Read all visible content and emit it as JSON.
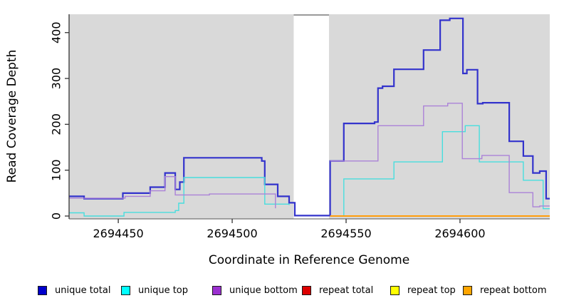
{
  "chart_data": {
    "type": "line",
    "subtype": "step-coverage",
    "title": "",
    "xlabel": "Coordinate in Reference Genome",
    "ylabel": "Read Coverage Depth",
    "x_ticks": [
      2694450,
      2694500,
      2694550,
      2694600
    ],
    "y_ticks": [
      0,
      100,
      200,
      300,
      400
    ],
    "xlim": [
      2694428.4,
      2694639.4
    ],
    "ylim": [
      -6.2,
      440
    ],
    "grid": false,
    "panel_bg": "#d9d9d9",
    "no_data_gap": {
      "from": 2694527,
      "to": 2694542.5,
      "fill": "#ffffff",
      "top_strip_color": "#9a9a9a"
    },
    "legend_position": "bottom",
    "series": [
      {
        "name": "unique total",
        "color": "#3333cc",
        "legend_color": "#0000cc",
        "line_width": 2.2,
        "points": [
          [
            2694428.4,
            43
          ],
          [
            2694435,
            38
          ],
          [
            2694452,
            50
          ],
          [
            2694464,
            63
          ],
          [
            2694470.5,
            94
          ],
          [
            2694475,
            58
          ],
          [
            2694477,
            74
          ],
          [
            2694478.8,
            127
          ],
          [
            2694513,
            120
          ],
          [
            2694514.3,
            69
          ],
          [
            2694520,
            43
          ],
          [
            2694525,
            29
          ],
          [
            2694527.5,
            1
          ],
          [
            2694543,
            120
          ],
          [
            2694549,
            202
          ],
          [
            2694562.5,
            205
          ],
          [
            2694564,
            279
          ],
          [
            2694566,
            283
          ],
          [
            2694571,
            320
          ],
          [
            2694584,
            362
          ],
          [
            2694591.3,
            427
          ],
          [
            2694595.5,
            431
          ],
          [
            2694601.3,
            311
          ],
          [
            2694603,
            319
          ],
          [
            2694607.7,
            245
          ],
          [
            2694610,
            247
          ],
          [
            2694621.6,
            163
          ],
          [
            2694627.8,
            131
          ],
          [
            2694632,
            94
          ],
          [
            2694635,
            98
          ],
          [
            2694637.8,
            38
          ]
        ]
      },
      {
        "name": "unique top",
        "color": "#48dede",
        "legend_color": "#00ffff",
        "line_width": 1.4,
        "points": [
          [
            2694428.4,
            7
          ],
          [
            2694435,
            0
          ],
          [
            2694452.5,
            8
          ],
          [
            2694475,
            12
          ],
          [
            2694476.5,
            28
          ],
          [
            2694478.8,
            84
          ],
          [
            2694514.3,
            26
          ],
          [
            2694525,
            24
          ],
          [
            2694527.5,
            null
          ],
          [
            2694543,
            0
          ],
          [
            2694549,
            81
          ],
          [
            2694571,
            118
          ],
          [
            2694592.3,
            184
          ],
          [
            2694602.3,
            197
          ],
          [
            2694608.5,
            118
          ],
          [
            2694627.8,
            78
          ],
          [
            2694636.5,
            16
          ]
        ]
      },
      {
        "name": "unique bottom",
        "color": "#ab82d8",
        "legend_color": "#9b30d0",
        "line_width": 1.4,
        "points": [
          [
            2694428.4,
            39
          ],
          [
            2694453,
            43
          ],
          [
            2694464,
            55
          ],
          [
            2694470.5,
            86
          ],
          [
            2694475,
            46
          ],
          [
            2694490,
            48
          ],
          [
            2694519,
            17
          ],
          [
            2694527.5,
            null
          ],
          [
            2694543,
            120
          ],
          [
            2694564,
            197
          ],
          [
            2694584,
            240
          ],
          [
            2694594.6,
            246
          ],
          [
            2694601,
            125
          ],
          [
            2694609.6,
            132
          ],
          [
            2694621.6,
            51
          ],
          [
            2694632,
            20
          ],
          [
            2694635,
            22
          ]
        ]
      },
      {
        "name": "repeat total",
        "color": "#dd0000",
        "legend_color": "#dd0000",
        "line_width": 1.4,
        "points": [
          [
            2694428.4,
            0
          ],
          [
            2694527,
            null
          ],
          [
            2694543,
            0
          ]
        ]
      },
      {
        "name": "repeat top",
        "color": "#ffff00",
        "legend_color": "#ffff00",
        "line_width": 1.4,
        "points": [
          [
            2694428.4,
            0
          ],
          [
            2694527,
            null
          ],
          [
            2694543,
            0
          ]
        ]
      },
      {
        "name": "repeat bottom",
        "color": "#ff9d0c",
        "legend_color": "#ffa500",
        "line_width": 2,
        "points": [
          [
            2694428.4,
            0
          ],
          [
            2694527,
            null
          ],
          [
            2694543,
            0
          ]
        ]
      }
    ]
  },
  "legend": {
    "items": [
      {
        "label": "unique total"
      },
      {
        "label": "unique top"
      },
      {
        "label": "unique bottom"
      },
      {
        "label": "repeat total"
      },
      {
        "label": "repeat top"
      },
      {
        "label": "repeat bottom"
      }
    ]
  }
}
